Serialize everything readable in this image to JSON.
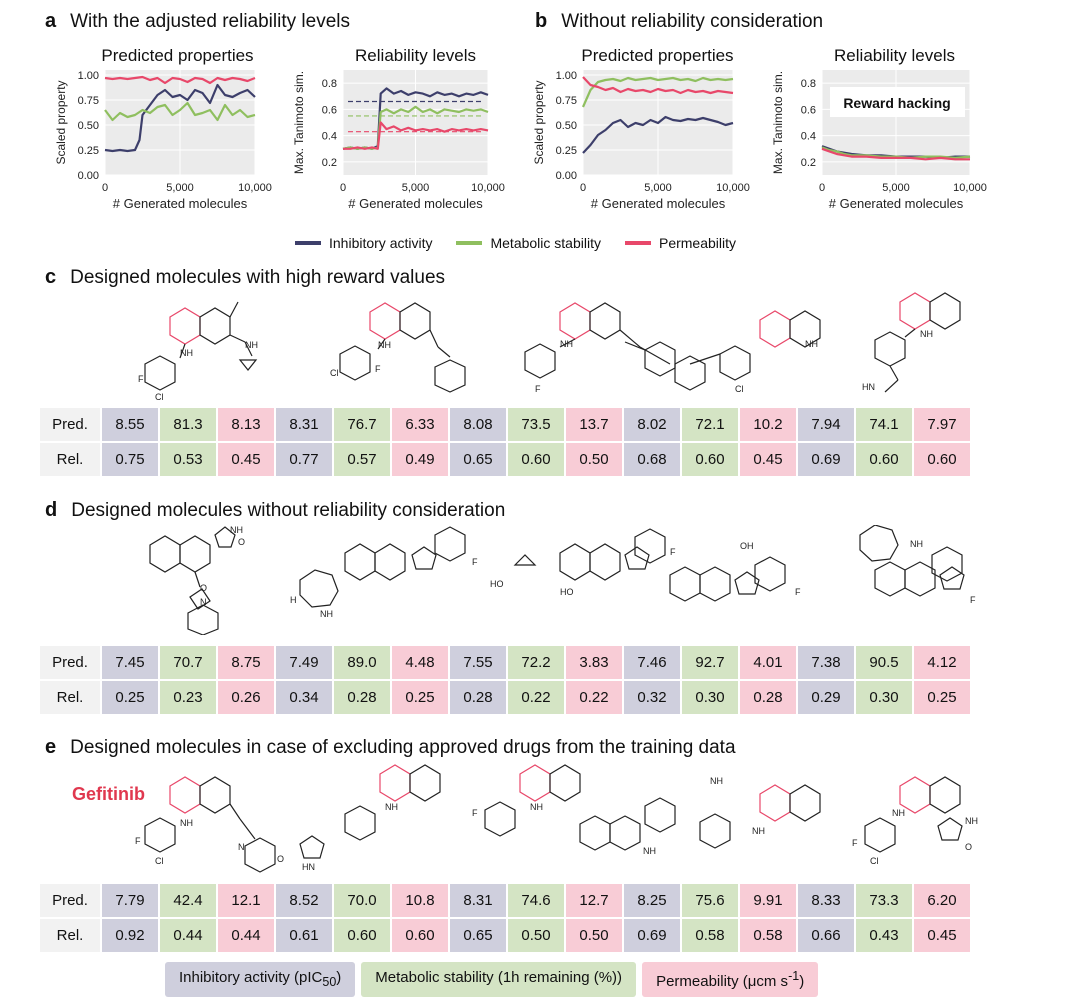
{
  "colors": {
    "inhibitory": "#3d3f6b",
    "metabolic": "#8fbf5f",
    "permeability": "#e8486a"
  },
  "sections": {
    "a": {
      "letter": "a",
      "title": "With the adjusted reliability levels"
    },
    "b": {
      "letter": "b",
      "title": "Without reliability consideration"
    },
    "c": {
      "letter": "c",
      "title": "Designed molecules with high reward values"
    },
    "d": {
      "letter": "d",
      "title": "Designed molecules without reliability consideration"
    },
    "e": {
      "letter": "e",
      "title": "Designed molecules in case of excluding approved drugs from the training data"
    }
  },
  "panel_titles": {
    "pred": "Predicted properties",
    "rel": "Reliability levels"
  },
  "reward_hacking": "Reward hacking",
  "gefitinib": "Gefitinib",
  "legend_top": [
    "Inhibitory activity",
    "Metabolic stability",
    "Permeability"
  ],
  "legend_bottom": {
    "inh": "Inhibitory activity (pIC",
    "inh_sub": "50",
    "inh_end": ")",
    "met": "Metabolic stability (1h remaining (%))",
    "perm": "Permeability (μcm s",
    "perm_sup": "-1",
    "perm_end": ")"
  },
  "chart_data": [
    {
      "id": "a_pred",
      "type": "line",
      "title": "Predicted properties",
      "xlabel": "# Generated molecules",
      "ylabel": "Scaled property",
      "xlim": [
        0,
        10000
      ],
      "ylim": [
        0,
        1.05
      ],
      "xticks": [
        "0",
        "5,000",
        "10,000"
      ],
      "yticks": [
        "0.00",
        "0.25",
        "0.50",
        "0.75",
        "1.00"
      ],
      "series": [
        {
          "name": "Inhibitory activity",
          "x": [
            0,
            500,
            1000,
            1500,
            2000,
            2300,
            2500,
            3000,
            3500,
            4000,
            4500,
            5000,
            5500,
            6000,
            6500,
            7000,
            7500,
            8000,
            8500,
            9000,
            9500,
            10000
          ],
          "values": [
            0.25,
            0.24,
            0.25,
            0.24,
            0.25,
            0.35,
            0.6,
            0.7,
            0.8,
            0.85,
            0.78,
            0.8,
            0.75,
            0.85,
            0.82,
            0.72,
            0.9,
            0.8,
            0.78,
            0.82,
            0.85,
            0.78
          ]
        },
        {
          "name": "Metabolic stability",
          "x": [
            0,
            500,
            1000,
            1500,
            2000,
            2500,
            3000,
            3500,
            4000,
            4500,
            5000,
            5500,
            6000,
            6500,
            7000,
            7500,
            8000,
            8500,
            9000,
            9500,
            10000
          ],
          "values": [
            0.65,
            0.55,
            0.62,
            0.58,
            0.6,
            0.65,
            0.62,
            0.68,
            0.7,
            0.6,
            0.65,
            0.72,
            0.6,
            0.62,
            0.65,
            0.55,
            0.7,
            0.6,
            0.65,
            0.58,
            0.6
          ]
        },
        {
          "name": "Permeability",
          "x": [
            0,
            500,
            1000,
            1500,
            2000,
            2500,
            3000,
            3500,
            4000,
            4500,
            5000,
            5500,
            6000,
            6500,
            7000,
            7500,
            8000,
            8500,
            9000,
            9500,
            10000
          ],
          "values": [
            0.97,
            0.96,
            0.97,
            0.96,
            0.97,
            0.98,
            0.95,
            0.97,
            0.92,
            0.97,
            0.96,
            0.93,
            0.97,
            0.96,
            0.92,
            0.97,
            0.95,
            0.97,
            0.96,
            0.94,
            0.97
          ]
        }
      ]
    },
    {
      "id": "a_rel",
      "type": "line",
      "title": "Reliability levels",
      "xlabel": "# Generated molecules",
      "ylabel": "Max. Tanimoto sim.",
      "xlim": [
        0,
        10000
      ],
      "ylim": [
        0.1,
        0.9
      ],
      "xticks": [
        "0",
        "5,000",
        "10,000"
      ],
      "yticks": [
        "0.2",
        "0.4",
        "0.6",
        "0.8"
      ],
      "thresholds": [
        0.66,
        0.55,
        0.43
      ],
      "series": [
        {
          "name": "Inhibitory activity",
          "x": [
            0,
            500,
            1000,
            1500,
            2000,
            2400,
            2600,
            3000,
            3500,
            4000,
            4500,
            5000,
            5500,
            6000,
            6500,
            7000,
            7500,
            8000,
            8500,
            9000,
            9500,
            10000
          ],
          "values": [
            0.3,
            0.31,
            0.3,
            0.31,
            0.3,
            0.32,
            0.72,
            0.76,
            0.72,
            0.74,
            0.71,
            0.73,
            0.72,
            0.7,
            0.73,
            0.71,
            0.72,
            0.7,
            0.72,
            0.71,
            0.73,
            0.71
          ]
        },
        {
          "name": "Metabolic stability",
          "x": [
            0,
            500,
            1000,
            1500,
            2000,
            2400,
            2600,
            3000,
            3500,
            4000,
            4500,
            5000,
            5500,
            6000,
            6500,
            7000,
            7500,
            8000,
            8500,
            9000,
            9500,
            10000
          ],
          "values": [
            0.3,
            0.31,
            0.3,
            0.31,
            0.3,
            0.31,
            0.58,
            0.6,
            0.57,
            0.6,
            0.58,
            0.62,
            0.58,
            0.6,
            0.57,
            0.6,
            0.59,
            0.58,
            0.6,
            0.59,
            0.6,
            0.58
          ]
        },
        {
          "name": "Permeability",
          "x": [
            0,
            500,
            1000,
            1500,
            2000,
            2400,
            2600,
            3000,
            3500,
            4000,
            4500,
            5000,
            5500,
            6000,
            6500,
            7000,
            7500,
            8000,
            8500,
            9000,
            9500,
            10000
          ],
          "values": [
            0.3,
            0.3,
            0.31,
            0.3,
            0.31,
            0.3,
            0.5,
            0.45,
            0.47,
            0.44,
            0.46,
            0.44,
            0.45,
            0.44,
            0.45,
            0.43,
            0.45,
            0.44,
            0.45,
            0.44,
            0.45,
            0.44
          ]
        }
      ]
    },
    {
      "id": "b_pred",
      "type": "line",
      "title": "Predicted properties",
      "xlabel": "# Generated molecules",
      "ylabel": "Scaled property",
      "xlim": [
        0,
        10000
      ],
      "ylim": [
        0,
        1.05
      ],
      "xticks": [
        "0",
        "5,000",
        "10,000"
      ],
      "yticks": [
        "0.00",
        "0.25",
        "0.50",
        "0.75",
        "1.00"
      ],
      "series": [
        {
          "name": "Inhibitory activity",
          "x": [
            0,
            500,
            1000,
            1500,
            2000,
            2500,
            3000,
            3500,
            4000,
            4500,
            5000,
            5500,
            6000,
            6500,
            7000,
            7500,
            8000,
            8500,
            9000,
            9500,
            10000
          ],
          "values": [
            0.22,
            0.3,
            0.4,
            0.45,
            0.52,
            0.55,
            0.48,
            0.52,
            0.5,
            0.55,
            0.52,
            0.58,
            0.55,
            0.54,
            0.56,
            0.55,
            0.57,
            0.55,
            0.53,
            0.5,
            0.52
          ]
        },
        {
          "name": "Metabolic stability",
          "x": [
            0,
            500,
            1000,
            1500,
            2000,
            2500,
            3000,
            3500,
            4000,
            4500,
            5000,
            5500,
            6000,
            6500,
            7000,
            7500,
            8000,
            8500,
            9000,
            9500,
            10000
          ],
          "values": [
            0.68,
            0.85,
            0.93,
            0.95,
            0.96,
            0.94,
            0.97,
            0.95,
            0.96,
            0.97,
            0.95,
            0.96,
            0.97,
            0.95,
            0.96,
            0.94,
            0.97,
            0.95,
            0.96,
            0.95,
            0.96
          ]
        },
        {
          "name": "Permeability",
          "x": [
            0,
            500,
            1000,
            1500,
            2000,
            2500,
            3000,
            3500,
            4000,
            4500,
            5000,
            5500,
            6000,
            6500,
            7000,
            7500,
            8000,
            8500,
            9000,
            9500,
            10000
          ],
          "values": [
            0.98,
            0.9,
            0.88,
            0.85,
            0.87,
            0.83,
            0.86,
            0.84,
            0.85,
            0.83,
            0.86,
            0.84,
            0.85,
            0.82,
            0.85,
            0.83,
            0.84,
            0.82,
            0.84,
            0.83,
            0.82
          ]
        }
      ]
    },
    {
      "id": "b_rel",
      "type": "line",
      "title": "Reliability levels",
      "xlabel": "# Generated molecules",
      "ylabel": "Max. Tanimoto sim.",
      "xlim": [
        0,
        10000
      ],
      "ylim": [
        0.1,
        0.9
      ],
      "xticks": [
        "0",
        "5,000",
        "10,000"
      ],
      "yticks": [
        "0.2",
        "0.4",
        "0.6",
        "0.8"
      ],
      "series": [
        {
          "name": "Inhibitory activity",
          "x": [
            0,
            500,
            1000,
            1500,
            2000,
            3000,
            4000,
            5000,
            6000,
            7000,
            8000,
            9000,
            10000
          ],
          "values": [
            0.32,
            0.3,
            0.28,
            0.27,
            0.26,
            0.25,
            0.25,
            0.24,
            0.24,
            0.24,
            0.23,
            0.24,
            0.24
          ]
        },
        {
          "name": "Metabolic stability",
          "x": [
            0,
            500,
            1000,
            1500,
            2000,
            3000,
            4000,
            5000,
            6000,
            7000,
            8000,
            9000,
            10000
          ],
          "values": [
            0.31,
            0.29,
            0.28,
            0.26,
            0.25,
            0.25,
            0.24,
            0.24,
            0.23,
            0.24,
            0.24,
            0.23,
            0.24
          ]
        },
        {
          "name": "Permeability",
          "x": [
            0,
            500,
            1000,
            1500,
            2000,
            3000,
            4000,
            5000,
            6000,
            7000,
            8000,
            9000,
            10000
          ],
          "values": [
            0.3,
            0.28,
            0.26,
            0.25,
            0.24,
            0.24,
            0.23,
            0.23,
            0.23,
            0.22,
            0.23,
            0.22,
            0.22
          ]
        }
      ]
    }
  ],
  "table_labels": {
    "pred": "Pred.",
    "rel": "Rel."
  },
  "tables": {
    "c": {
      "pred": [
        "8.55",
        "81.3",
        "8.13",
        "8.31",
        "76.7",
        "6.33",
        "8.08",
        "73.5",
        "13.7",
        "8.02",
        "72.1",
        "10.2",
        "7.94",
        "74.1",
        "7.97"
      ],
      "rel": [
        "0.75",
        "0.53",
        "0.45",
        "0.77",
        "0.57",
        "0.49",
        "0.65",
        "0.60",
        "0.50",
        "0.68",
        "0.60",
        "0.45",
        "0.69",
        "0.60",
        "0.60"
      ]
    },
    "d": {
      "pred": [
        "7.45",
        "70.7",
        "8.75",
        "7.49",
        "89.0",
        "4.48",
        "7.55",
        "72.2",
        "3.83",
        "7.46",
        "92.7",
        "4.01",
        "7.38",
        "90.5",
        "4.12"
      ],
      "rel": [
        "0.25",
        "0.23",
        "0.26",
        "0.34",
        "0.28",
        "0.25",
        "0.28",
        "0.22",
        "0.22",
        "0.32",
        "0.30",
        "0.28",
        "0.29",
        "0.30",
        "0.25"
      ]
    },
    "e": {
      "pred": [
        "7.79",
        "42.4",
        "12.1",
        "8.52",
        "70.0",
        "10.8",
        "8.31",
        "74.6",
        "12.7",
        "8.25",
        "75.6",
        "9.91",
        "8.33",
        "73.3",
        "6.20"
      ],
      "rel": [
        "0.92",
        "0.44",
        "0.44",
        "0.61",
        "0.60",
        "0.60",
        "0.65",
        "0.50",
        "0.50",
        "0.69",
        "0.58",
        "0.58",
        "0.66",
        "0.43",
        "0.45"
      ]
    }
  },
  "atom_labels": {
    "n": "N",
    "nh": "NH",
    "hn": "HN",
    "o": "O",
    "f": "F",
    "cl": "Cl",
    "oh": "OH",
    "ho": "HO",
    "h": "H",
    "nh_lower": "NH"
  }
}
